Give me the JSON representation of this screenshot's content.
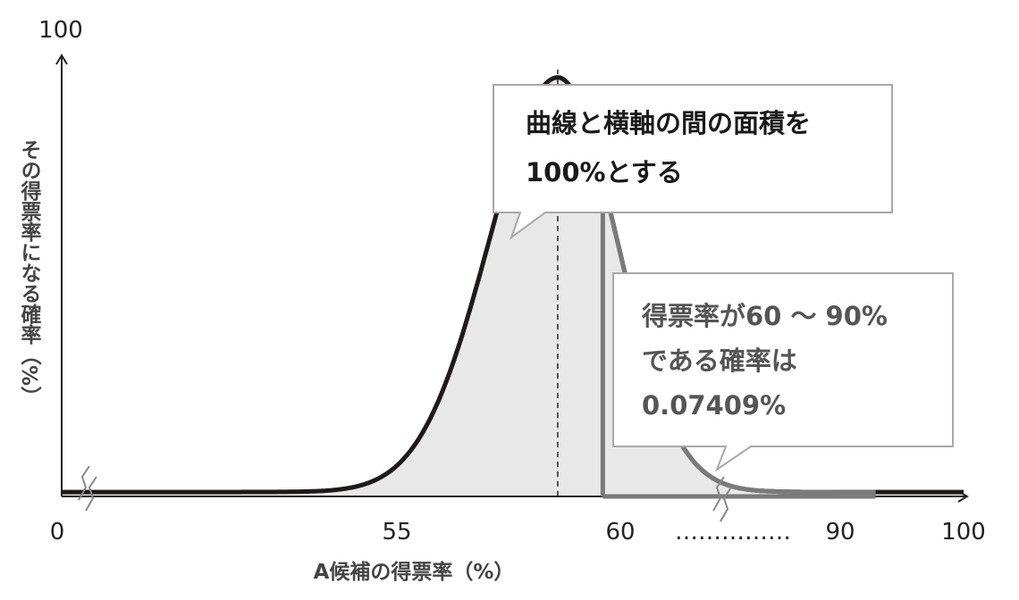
{
  "chart_data": {
    "type": "area",
    "title": "",
    "xlabel": "A候補の得票率（%）",
    "ylabel": "その得票率になる確率（%）",
    "xlim": [
      0,
      100
    ],
    "ylim": [
      0,
      100
    ],
    "x_ticks": [
      "0",
      "55",
      "60",
      "90",
      "100"
    ],
    "y_ticks": [
      "100"
    ],
    "x_tick_gap": "……………",
    "distribution": {
      "mean": 55,
      "peak": 95
    },
    "highlight_range": [
      60,
      90
    ],
    "callouts": [
      {
        "lines": [
          "曲線と横軸の間の面積を",
          "100%とする"
        ]
      },
      {
        "lines": [
          "得票率が60 ～ 90%",
          "である確率は",
          "0.07409%"
        ]
      }
    ],
    "grid": false,
    "fill_color": "#e8e8e8",
    "curve_color": "#1e1a1a",
    "highlight_color": "#7a7a7a"
  }
}
